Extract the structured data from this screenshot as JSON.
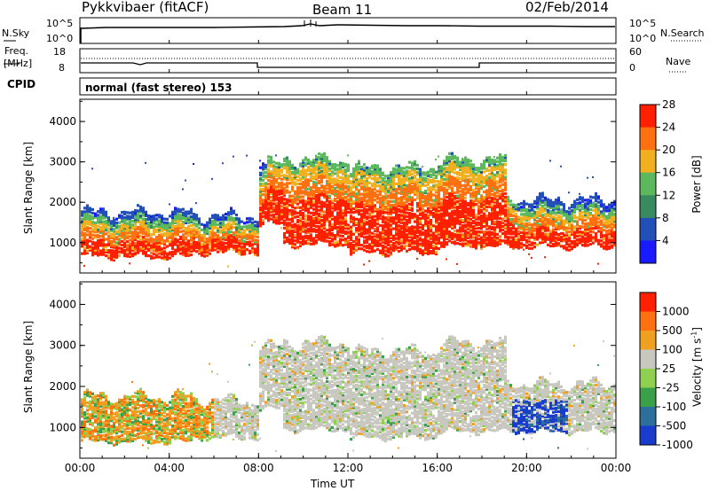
{
  "header": {
    "station": "Pykkvibaer (fitACF)",
    "beam": "Beam 11",
    "date": "02/Feb/2014"
  },
  "nsky_panel": {
    "label": "N.Sky",
    "tick_top": "10^5",
    "tick_bottom": "10^0",
    "right_label": "N.Search",
    "right_tick_top": "10^5",
    "right_tick_bottom": "10^0"
  },
  "freq_panel": {
    "label_line1": "Freq.",
    "label_line2": "[MHz]",
    "tick_top": "18",
    "tick_bottom": "8",
    "right_label": "Nave",
    "right_tick_top": "60",
    "right_tick_bottom": "0"
  },
  "cpid": {
    "label": "CPID",
    "text": "normal (fast stereo) 153"
  },
  "chart_data": [
    {
      "type": "heatmap",
      "name": "power",
      "ylabel": "Slant Range [km]",
      "yticks": [
        "1000",
        "2000",
        "3000",
        "4000"
      ],
      "ylim": [
        250,
        4550
      ],
      "xlim_hours": [
        0,
        24
      ],
      "colorbar": {
        "label": "Power [dB]",
        "ticks": [
          "4",
          "8",
          "12",
          "16",
          "20",
          "24",
          "28"
        ],
        "colors": [
          "#1a1aff",
          "#2250b8",
          "#3a8a60",
          "#5cb85c",
          "#f0b020",
          "#ff7010",
          "#ff2000"
        ]
      }
    },
    {
      "type": "heatmap",
      "name": "velocity",
      "ylabel": "Slant Range [km]",
      "yticks": [
        "1000",
        "2000",
        "3000",
        "4000"
      ],
      "ylim": [
        250,
        4550
      ],
      "xlim_hours": [
        0,
        24
      ],
      "colorbar": {
        "label": "Velocity [m s^-1]",
        "ticks": [
          "1000",
          "500",
          "100",
          "25",
          "-25",
          "-100",
          "-500",
          "-1000"
        ],
        "colors": [
          "#1a3ccc",
          "#2e6e9a",
          "#3aa04a",
          "#90d050",
          "#c8c8c0",
          "#f0a020",
          "#ff7010",
          "#ff2000"
        ]
      }
    }
  ],
  "xaxis": {
    "ticks": [
      "00:00",
      "04:00",
      "08:00",
      "12:00",
      "16:00",
      "20:00",
      "00:00"
    ],
    "label": "Time UT"
  }
}
